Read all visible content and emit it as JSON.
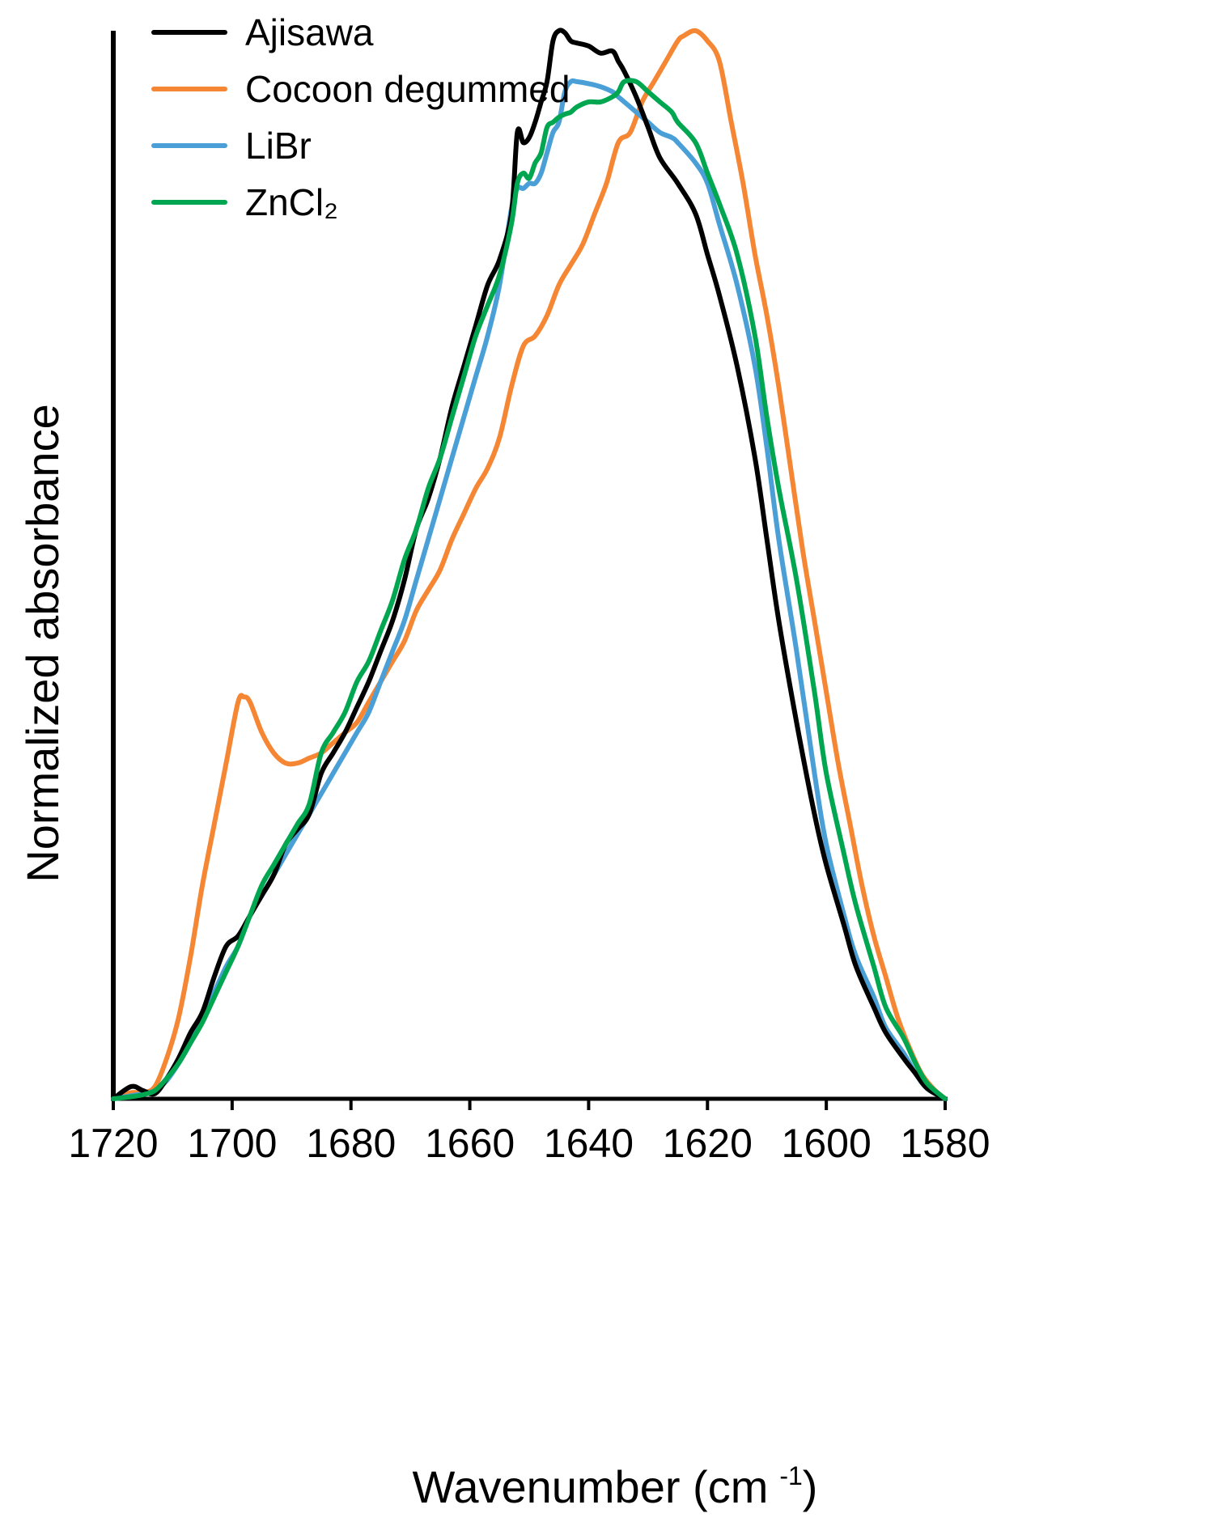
{
  "chart_data": {
    "type": "line",
    "title": "",
    "xlabel": "Wavenumber (cm",
    "xlabel_sup": "-1",
    "xlabel_close": ")",
    "ylabel": "Normalized absorbance",
    "xlim": [
      1720,
      1580
    ],
    "ylim": [
      0,
      1.05
    ],
    "x_reversed": true,
    "xticks": [
      "1720",
      "1700",
      "1680",
      "1660",
      "1640",
      "1620",
      "1600",
      "1580"
    ],
    "grid": false,
    "legend_position": "top-left",
    "series": [
      {
        "name": "Ajisawa",
        "color": "#000000",
        "x": [
          1720,
          1717,
          1715,
          1713,
          1711,
          1709,
          1707,
          1705,
          1703,
          1701,
          1699,
          1697,
          1695,
          1693,
          1691,
          1689,
          1687,
          1685,
          1683,
          1681,
          1679,
          1677,
          1675,
          1673,
          1671,
          1669,
          1667,
          1665,
          1663,
          1661,
          1659,
          1657,
          1655,
          1653,
          1652,
          1651,
          1650,
          1649,
          1648,
          1647,
          1646,
          1645,
          1644,
          1643,
          1642,
          1640,
          1638,
          1636,
          1635,
          1634,
          1632,
          1630,
          1628,
          1625,
          1622,
          1620,
          1618,
          1615,
          1612,
          1610,
          1608,
          1605,
          1602,
          1600,
          1597,
          1595,
          1592,
          1590,
          1587,
          1585,
          1583,
          1580
        ],
        "y": [
          0.0,
          0.012,
          0.008,
          0.005,
          0.02,
          0.04,
          0.065,
          0.085,
          0.12,
          0.15,
          0.16,
          0.18,
          0.2,
          0.22,
          0.25,
          0.265,
          0.28,
          0.32,
          0.34,
          0.36,
          0.385,
          0.41,
          0.44,
          0.47,
          0.51,
          0.56,
          0.59,
          0.63,
          0.68,
          0.72,
          0.76,
          0.8,
          0.825,
          0.87,
          0.95,
          0.94,
          0.945,
          0.96,
          0.98,
          1.0,
          1.04,
          1.05,
          1.048,
          1.04,
          1.038,
          1.035,
          1.028,
          1.03,
          1.02,
          1.01,
          0.985,
          0.955,
          0.925,
          0.9,
          0.87,
          0.83,
          0.79,
          0.72,
          0.63,
          0.55,
          0.47,
          0.37,
          0.28,
          0.23,
          0.17,
          0.13,
          0.09,
          0.065,
          0.04,
          0.025,
          0.01,
          0.0
        ]
      },
      {
        "name": "Cocoon degummed",
        "color": "#F58634",
        "x": [
          1720,
          1717,
          1715,
          1713,
          1711,
          1709,
          1707,
          1705,
          1703,
          1701,
          1699,
          1698,
          1697,
          1695,
          1693,
          1691,
          1689,
          1687,
          1685,
          1683,
          1681,
          1679,
          1677,
          1675,
          1673,
          1671,
          1669,
          1667,
          1665,
          1663,
          1661,
          1659,
          1657,
          1655,
          1653,
          1651,
          1649,
          1647,
          1645,
          1643,
          1641,
          1639,
          1637,
          1635,
          1633,
          1631,
          1629,
          1627,
          1625,
          1624,
          1622,
          1620,
          1618,
          1616,
          1614,
          1612,
          1610,
          1608,
          1606,
          1604,
          1602,
          1600,
          1598,
          1596,
          1594,
          1592,
          1590,
          1588,
          1586,
          1584,
          1582,
          1580
        ],
        "y": [
          0.0,
          0.006,
          0.006,
          0.012,
          0.04,
          0.08,
          0.14,
          0.21,
          0.27,
          0.33,
          0.39,
          0.395,
          0.39,
          0.36,
          0.34,
          0.33,
          0.33,
          0.335,
          0.34,
          0.35,
          0.36,
          0.37,
          0.39,
          0.41,
          0.43,
          0.45,
          0.48,
          0.5,
          0.52,
          0.55,
          0.575,
          0.6,
          0.62,
          0.65,
          0.7,
          0.74,
          0.75,
          0.77,
          0.8,
          0.82,
          0.84,
          0.87,
          0.9,
          0.94,
          0.95,
          0.98,
          1.0,
          1.02,
          1.04,
          1.045,
          1.05,
          1.04,
          1.02,
          0.96,
          0.9,
          0.83,
          0.77,
          0.7,
          0.62,
          0.54,
          0.47,
          0.4,
          0.33,
          0.27,
          0.21,
          0.16,
          0.12,
          0.08,
          0.05,
          0.025,
          0.01,
          0.0
        ]
      },
      {
        "name": "LiBr",
        "color": "#4A9FD6",
        "x": [
          1720,
          1717,
          1715,
          1713,
          1711,
          1709,
          1707,
          1705,
          1703,
          1701,
          1699,
          1697,
          1695,
          1693,
          1691,
          1689,
          1687,
          1685,
          1683,
          1681,
          1679,
          1677,
          1675,
          1673,
          1671,
          1669,
          1667,
          1665,
          1663,
          1661,
          1659,
          1657,
          1655,
          1653,
          1652,
          1651,
          1650,
          1649,
          1648,
          1647,
          1646,
          1645,
          1644,
          1643,
          1642,
          1640,
          1638,
          1636,
          1635,
          1634,
          1632,
          1630,
          1628,
          1626,
          1625,
          1622,
          1620,
          1618,
          1615,
          1612,
          1610,
          1608,
          1605,
          1602,
          1600,
          1597,
          1595,
          1592,
          1590,
          1587,
          1585,
          1583,
          1580
        ],
        "y": [
          0.0,
          0.003,
          0.005,
          0.008,
          0.018,
          0.035,
          0.055,
          0.08,
          0.105,
          0.13,
          0.15,
          0.18,
          0.2,
          0.22,
          0.24,
          0.26,
          0.28,
          0.3,
          0.32,
          0.34,
          0.36,
          0.38,
          0.41,
          0.44,
          0.47,
          0.51,
          0.55,
          0.59,
          0.63,
          0.67,
          0.71,
          0.75,
          0.8,
          0.875,
          0.895,
          0.895,
          0.9,
          0.9,
          0.91,
          0.93,
          0.95,
          0.96,
          0.99,
          1.0,
          1.0,
          0.998,
          0.995,
          0.99,
          0.985,
          0.98,
          0.97,
          0.96,
          0.95,
          0.945,
          0.94,
          0.92,
          0.9,
          0.86,
          0.8,
          0.72,
          0.64,
          0.55,
          0.44,
          0.32,
          0.25,
          0.18,
          0.14,
          0.1,
          0.07,
          0.045,
          0.025,
          0.01,
          0.0
        ]
      },
      {
        "name": "ZnCl₂",
        "color": "#00A650",
        "x": [
          1720,
          1717,
          1715,
          1713,
          1711,
          1709,
          1707,
          1705,
          1703,
          1701,
          1699,
          1697,
          1695,
          1693,
          1691,
          1689,
          1687,
          1685,
          1683,
          1681,
          1679,
          1677,
          1675,
          1673,
          1671,
          1669,
          1667,
          1665,
          1663,
          1661,
          1659,
          1657,
          1655,
          1653,
          1652,
          1651,
          1650,
          1649,
          1648,
          1647,
          1646,
          1645,
          1644,
          1643,
          1642,
          1640,
          1638,
          1636,
          1635,
          1634,
          1632,
          1630,
          1628,
          1626,
          1625,
          1622,
          1620,
          1618,
          1615,
          1612,
          1610,
          1608,
          1605,
          1602,
          1600,
          1597,
          1595,
          1592,
          1590,
          1587,
          1585,
          1583,
          1580
        ],
        "y": [
          0.0,
          0.002,
          0.004,
          0.008,
          0.02,
          0.035,
          0.055,
          0.075,
          0.1,
          0.125,
          0.15,
          0.18,
          0.21,
          0.23,
          0.25,
          0.27,
          0.29,
          0.34,
          0.36,
          0.38,
          0.41,
          0.43,
          0.46,
          0.49,
          0.53,
          0.56,
          0.6,
          0.63,
          0.67,
          0.71,
          0.75,
          0.78,
          0.81,
          0.86,
          0.9,
          0.91,
          0.905,
          0.92,
          0.93,
          0.955,
          0.96,
          0.965,
          0.968,
          0.97,
          0.975,
          0.98,
          0.98,
          0.985,
          0.99,
          1.0,
          1.0,
          0.99,
          0.98,
          0.97,
          0.96,
          0.94,
          0.91,
          0.88,
          0.83,
          0.75,
          0.67,
          0.6,
          0.51,
          0.4,
          0.32,
          0.24,
          0.19,
          0.13,
          0.09,
          0.06,
          0.035,
          0.015,
          0.0
        ]
      }
    ]
  }
}
